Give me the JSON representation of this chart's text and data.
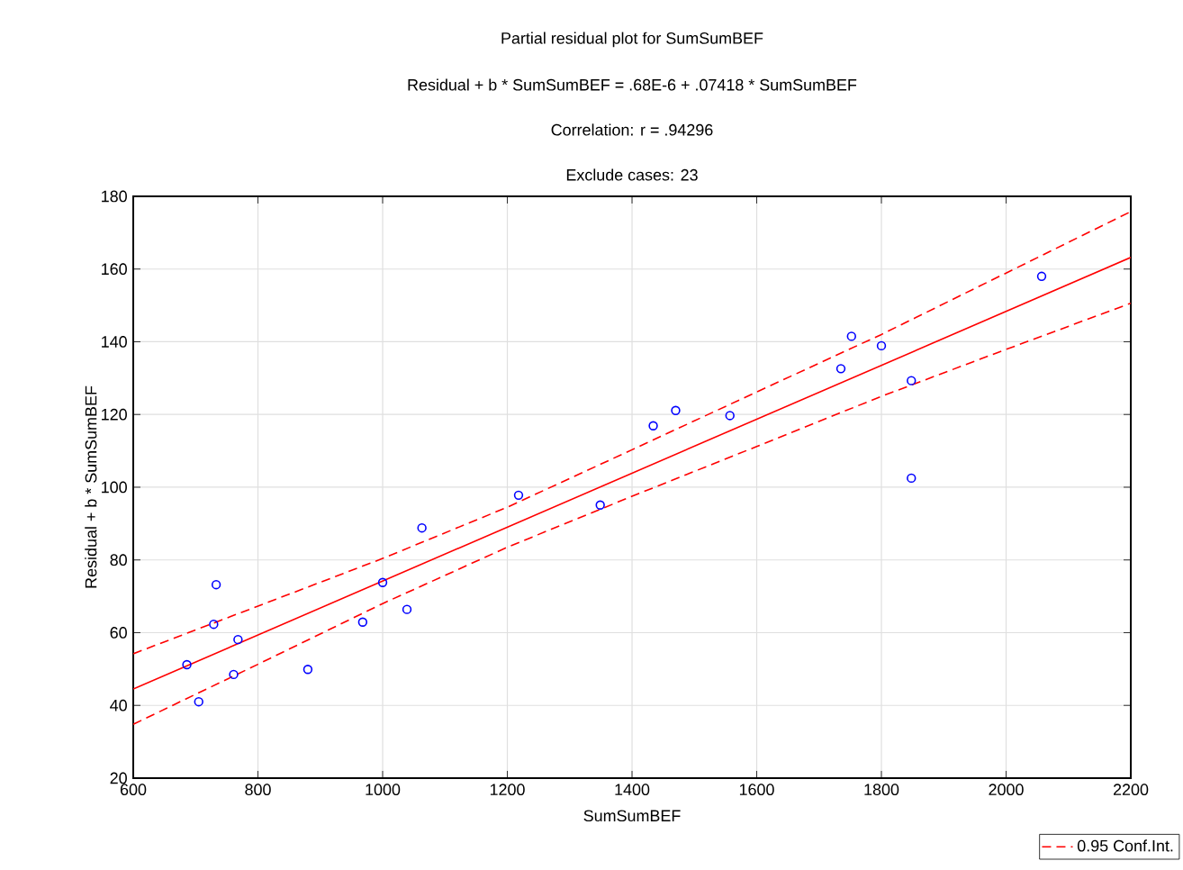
{
  "chart_data": {
    "type": "scatter",
    "title": "Partial residual plot for SumSumBEF",
    "subtitle": "Residual + b * SumSumBEF = .68E-6 + .07418 * SumSumBEF",
    "annotations": [
      "Correlation: r = .94296",
      "Exclude cases: 23"
    ],
    "xlabel": "SumSumBEF",
    "ylabel": "Residual + b * SumSumBEF",
    "xlim": [
      600,
      2200
    ],
    "ylim": [
      20,
      180
    ],
    "xticks": [
      600,
      800,
      1000,
      1200,
      1400,
      1600,
      1800,
      2000,
      2200
    ],
    "yticks": [
      20,
      40,
      60,
      80,
      100,
      120,
      140,
      160,
      180
    ],
    "grid": true,
    "legend": "bottom right",
    "series": [
      {
        "marker": "circle",
        "color": "#0000ff",
        "x": [
          686,
          705,
          729,
          733,
          761,
          768,
          880,
          968,
          1000,
          1039,
          1063,
          1218,
          1349,
          1434,
          1470,
          1557,
          1735,
          1752,
          1800,
          1848,
          1848,
          2057
        ],
        "values": [
          51.2,
          41,
          62.3,
          73.2,
          48.5,
          58.1,
          49.9,
          62.9,
          73.8,
          66.4,
          88.8,
          97.8,
          95.1,
          116.9,
          121.1,
          119.7,
          132.6,
          141.5,
          138.9,
          129.3,
          102.5,
          158
        ]
      },
      {
        "type": "line",
        "color": "#ff0000",
        "x": [
          600,
          2200
        ],
        "values": [
          44.5,
          163.2
        ]
      },
      {
        "type": "line",
        "name": "0.95 Conf.Int.",
        "color": "#ff0000",
        "line_style": "dashed",
        "x": [
          600,
          800,
          1000,
          1200,
          1400,
          1600,
          1800,
          2000,
          2200
        ],
        "values": [
          54.2,
          67.3,
          80.4,
          94.5,
          110.3,
          126.2,
          142.0,
          158.9,
          175.8
        ]
      },
      {
        "type": "line",
        "color": "#ff0000",
        "line_style": "dashed",
        "x": [
          600,
          800,
          1000,
          1200,
          1400,
          1600,
          1800,
          2000,
          2200
        ],
        "values": [
          34.8,
          51.3,
          68.0,
          83.5,
          97.5,
          111.2,
          125.0,
          137.9,
          150.6
        ]
      }
    ]
  }
}
